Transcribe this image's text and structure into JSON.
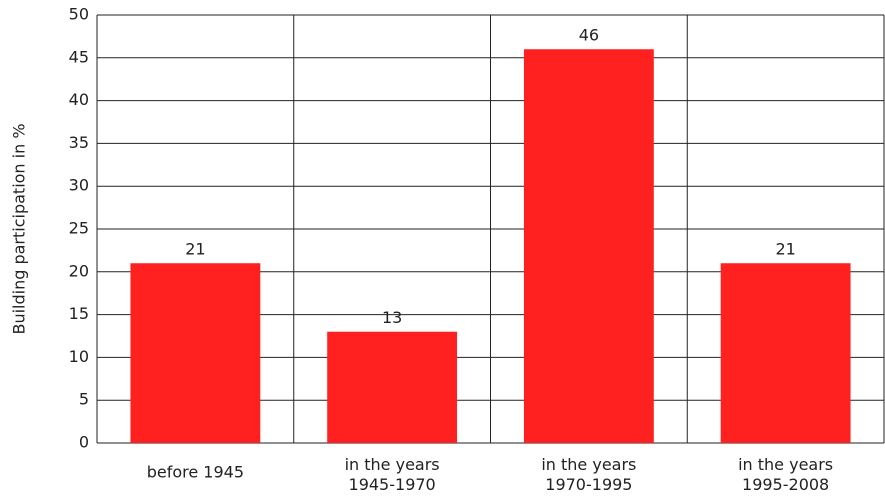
{
  "chart_data": {
    "type": "bar",
    "y_label": "Building participation in %",
    "categories": [
      "before 1945",
      "in the years\n1945-1970",
      "in the years\n1970-1995",
      "in the years\n1995-2008"
    ],
    "values": [
      21,
      13,
      46,
      21
    ],
    "color": "#ff2020",
    "ylim": [
      0,
      50
    ],
    "yticks": [
      0,
      5,
      10,
      15,
      20,
      25,
      30,
      35,
      40,
      45,
      50
    ],
    "grid": true
  }
}
